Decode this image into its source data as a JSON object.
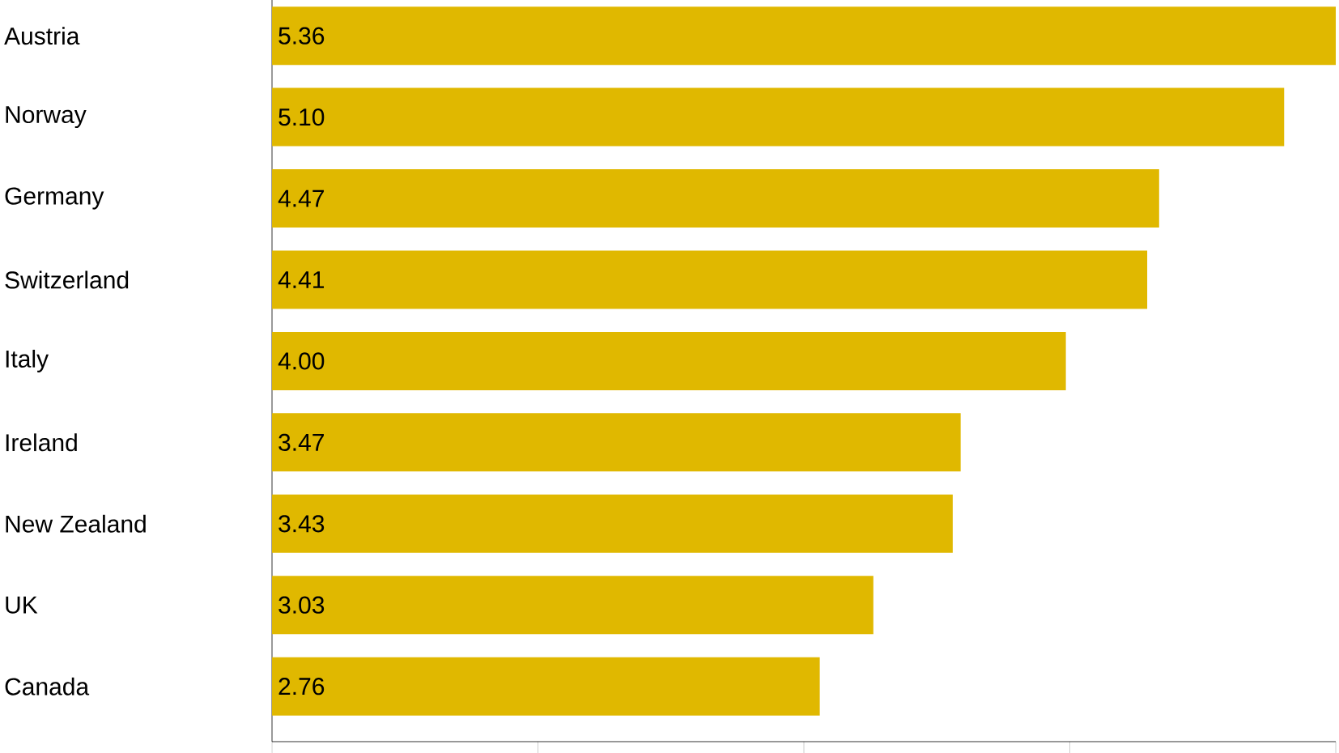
{
  "chart_data": {
    "type": "bar",
    "orientation": "horizontal",
    "categories": [
      "Austria",
      "Norway",
      "Germany",
      "Switzerland",
      "Italy",
      "Ireland",
      "New Zealand",
      "UK",
      "Canada"
    ],
    "values": [
      5.36,
      5.1,
      4.47,
      4.41,
      4.0,
      3.47,
      3.43,
      3.03,
      2.76
    ],
    "value_labels": [
      "5.36",
      "5.10",
      "4.47",
      "4.41",
      "4.00",
      "3.47",
      "3.43",
      "3.03",
      "2.76"
    ],
    "color": "#e0b800",
    "xlim": [
      0,
      5.36
    ],
    "xticks": [
      {
        "value": 0,
        "label": null
      },
      {
        "value": 1.34,
        "label": null
      },
      {
        "value": 2.68,
        "label": null
      },
      {
        "value": 4.02,
        "label": null
      },
      {
        "value": 5.36,
        "label": null
      }
    ],
    "tick_labels": "y",
    "grid": false
  }
}
